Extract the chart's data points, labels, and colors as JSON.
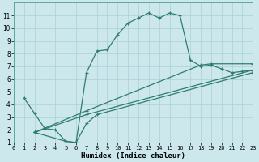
{
  "xlabel": "Humidex (Indice chaleur)",
  "xlim": [
    0,
    23
  ],
  "ylim": [
    1,
    12
  ],
  "xticks": [
    0,
    1,
    2,
    3,
    4,
    5,
    6,
    7,
    8,
    9,
    10,
    11,
    12,
    13,
    14,
    15,
    16,
    17,
    18,
    19,
    20,
    21,
    22,
    23
  ],
  "yticks": [
    1,
    2,
    3,
    4,
    5,
    6,
    7,
    8,
    9,
    10,
    11
  ],
  "bg_color": "#cde8ed",
  "line_color": "#2e7d6e",
  "grid_color": "#aed4db",
  "lines": [
    {
      "x": [
        1,
        2,
        3,
        4,
        5,
        6,
        7,
        8,
        9,
        10,
        11,
        12,
        13,
        14,
        15,
        16,
        17,
        18,
        19,
        20,
        21,
        22,
        23
      ],
      "y": [
        4.5,
        3.3,
        2.1,
        2.0,
        1.1,
        1.0,
        6.5,
        8.2,
        8.3,
        9.5,
        10.4,
        10.8,
        11.2,
        10.8,
        11.2,
        11.0,
        7.5,
        7.0,
        7.1,
        6.8,
        6.5,
        6.6,
        6.7
      ]
    },
    {
      "x": [
        2,
        7,
        18,
        19,
        23
      ],
      "y": [
        1.8,
        3.5,
        7.1,
        7.2,
        7.2
      ]
    },
    {
      "x": [
        2,
        7,
        23
      ],
      "y": [
        1.8,
        3.2,
        6.7
      ]
    },
    {
      "x": [
        2,
        5,
        6,
        7,
        8,
        23
      ],
      "y": [
        1.8,
        1.1,
        1.0,
        2.5,
        3.2,
        6.5
      ]
    }
  ]
}
